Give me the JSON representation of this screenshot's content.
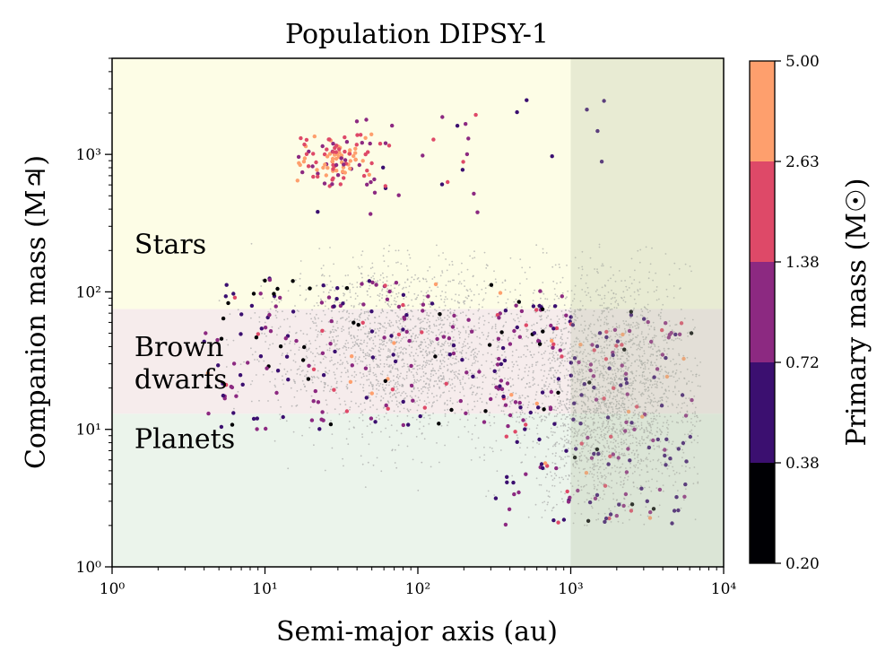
{
  "chart_data": {
    "type": "scatter",
    "title": "Population DIPSY-1",
    "xlabel": "Semi-major axis (au)",
    "ylabel": "Companion mass (M♃)",
    "xscale": "log",
    "yscale": "log",
    "xlim": [
      1,
      10000
    ],
    "ylim": [
      1,
      5000
    ],
    "x_ticks": [
      {
        "value": 1,
        "label": "10⁰"
      },
      {
        "value": 10,
        "label": "10¹"
      },
      {
        "value": 100,
        "label": "10²"
      },
      {
        "value": 1000,
        "label": "10³"
      },
      {
        "value": 10000,
        "label": "10⁴"
      }
    ],
    "y_ticks": [
      {
        "value": 1,
        "label": "10⁰"
      },
      {
        "value": 10,
        "label": "10¹"
      },
      {
        "value": 100,
        "label": "10²"
      },
      {
        "value": 1000,
        "label": "10³"
      }
    ],
    "regions": [
      {
        "name": "Stars",
        "label_lines": [
          "Stars"
        ],
        "ymin": 75,
        "ymax": 5000,
        "color": "#fdfde6",
        "label_at": [
          1.4,
          190
        ]
      },
      {
        "name": "Brown dwarfs",
        "label_lines": [
          "Brown",
          "dwarfs"
        ],
        "ymin": 13,
        "ymax": 75,
        "color": "#f6ecec",
        "label_at": [
          1.4,
          34
        ]
      },
      {
        "name": "Planets",
        "label_lines": [
          "Planets"
        ],
        "ymin": 1,
        "ymax": 13,
        "color": "#ebf4eb",
        "label_at": [
          1.4,
          7.3
        ]
      }
    ],
    "shaded_range": {
      "xmin": 1000,
      "xmax": 10000,
      "color": "#b4bea0",
      "opacity": 0.28
    },
    "colorbar": {
      "label": "Primary mass (M☉)",
      "boundaries": [
        0.2,
        0.38,
        0.72,
        1.38,
        2.63,
        5.0
      ],
      "tick_labels": [
        "0.20",
        "0.38",
        "0.72",
        "1.38",
        "2.63",
        "5.00"
      ],
      "colors": [
        "#000004",
        "#3b0f70",
        "#8c2981",
        "#de4968",
        "#fe9f6d"
      ]
    },
    "background_population": {
      "description": "simulated population (grey dots)",
      "color": "#a8a8a8",
      "count": 4500,
      "seed": 11
    },
    "detected_population": {
      "description": "colored by primary mass bin",
      "clusters": [
        {
          "bin": 3,
          "count": 70,
          "loga": [
            1.2,
            1.7
          ],
          "logm": [
            2.75,
            3.15
          ],
          "bin_weights": [
            0,
            0,
            0.15,
            0.55,
            0.3
          ]
        },
        {
          "bin": 4,
          "count": 30,
          "loga": [
            1.4,
            1.6
          ],
          "logm": [
            2.85,
            3.05
          ],
          "bin_weights": [
            0,
            0,
            0,
            0.25,
            0.75
          ]
        },
        {
          "bin": 2,
          "count": 40,
          "loga": [
            1.3,
            2.4
          ],
          "logm": [
            2.55,
            3.3
          ],
          "bin_weights": [
            0,
            0.15,
            0.55,
            0.3,
            0
          ]
        },
        {
          "bin": 1,
          "count": 8,
          "loga": [
            2.3,
            3.7
          ],
          "logm": [
            2.6,
            3.4
          ],
          "bin_weights": [
            0,
            0.8,
            0.2,
            0,
            0
          ]
        },
        {
          "bin": 0,
          "count": 220,
          "loga": [
            0.6,
            3.0
          ],
          "logm": [
            1.0,
            2.1
          ],
          "bin_weights": [
            0.12,
            0.38,
            0.38,
            0.08,
            0.04
          ]
        },
        {
          "bin": 0,
          "count": 200,
          "loga": [
            2.5,
            3.8
          ],
          "logm": [
            0.3,
            1.9
          ],
          "bin_weights": [
            0.06,
            0.38,
            0.36,
            0.14,
            0.06
          ]
        }
      ]
    }
  }
}
